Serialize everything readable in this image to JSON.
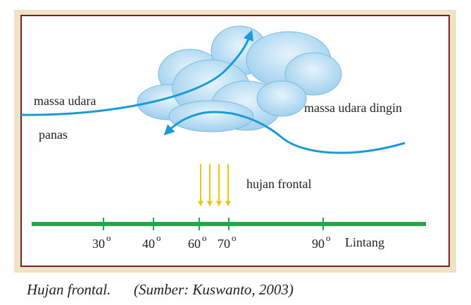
{
  "labels": {
    "warm_line1": "massa udara",
    "warm_line2": "panas",
    "cold": "massa udara dingin",
    "rain": "hujan frontal"
  },
  "axis": {
    "ticks": [
      {
        "label": "30",
        "degree": "o"
      },
      {
        "label": "40",
        "degree": "o"
      },
      {
        "label": "60",
        "degree": "o"
      },
      {
        "label": "70",
        "degree": "o"
      },
      {
        "label": "90",
        "degree": "o"
      }
    ],
    "unit": "Lintang"
  },
  "caption": {
    "title": "Hujan frontal.",
    "source": "(Sumber: Kuswanto, 2003)"
  }
}
